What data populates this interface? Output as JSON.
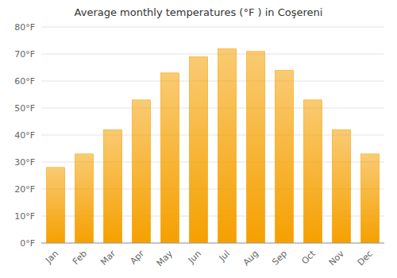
{
  "chart_data": {
    "type": "bar",
    "title": "Average monthly temperatures (°F ) in Coşereni",
    "categories": [
      "Jan",
      "Feb",
      "Mar",
      "Apr",
      "May",
      "Jun",
      "Jul",
      "Aug",
      "Sep",
      "Oct",
      "Nov",
      "Dec"
    ],
    "values": [
      28,
      33,
      42,
      53,
      63,
      69,
      72,
      71,
      64,
      53,
      42,
      33
    ],
    "color": "#F5A000",
    "ylim": [
      0,
      80
    ],
    "yticks": [
      {
        "value": 0,
        "label": "0°F"
      },
      {
        "value": 10,
        "label": "10°F"
      },
      {
        "value": 20,
        "label": "20°F"
      },
      {
        "value": 30,
        "label": "30°F"
      },
      {
        "value": 40,
        "label": "40°F"
      },
      {
        "value": 50,
        "label": "50°F"
      },
      {
        "value": 60,
        "label": "60°F"
      },
      {
        "value": 70,
        "label": "70°F"
      },
      {
        "value": 80,
        "label": "80°F"
      }
    ],
    "grid": true
  }
}
